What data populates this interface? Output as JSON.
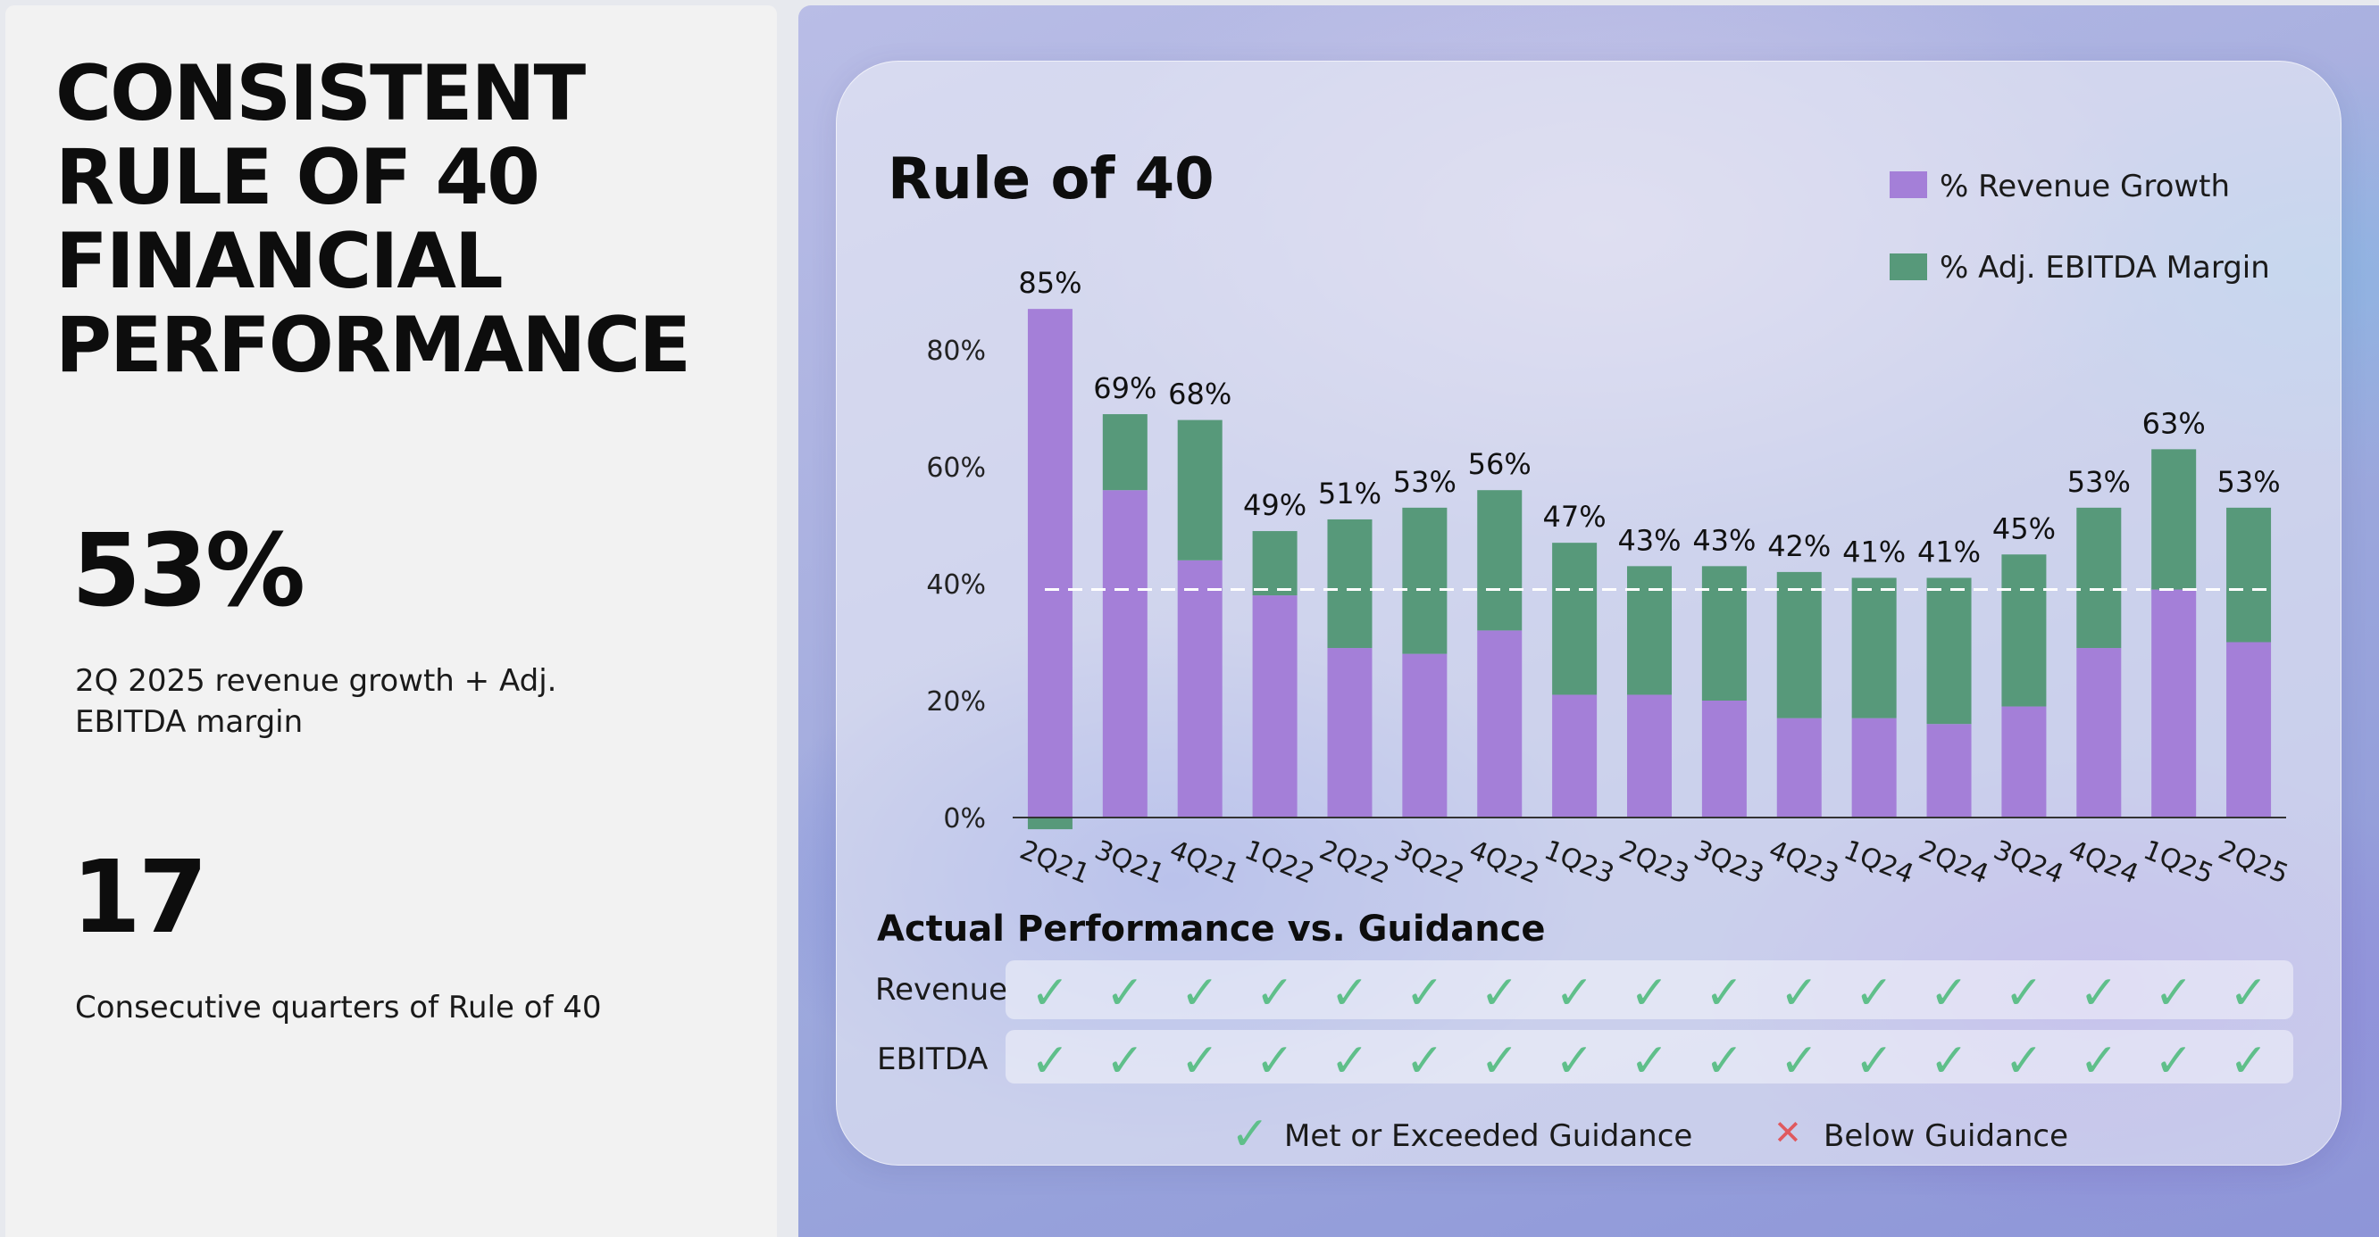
{
  "left_panel": {
    "headline_lines": [
      "CONSISTENT",
      "RULE OF 40",
      "FINANCIAL",
      "PERFORMANCE"
    ],
    "stat1_value": "53%",
    "stat1_desc_lines": [
      "2Q 2025 revenue growth + Adj.",
      "EBITDA margin"
    ],
    "stat2_value": "17",
    "stat2_desc": "Consecutive quarters of Rule of 40"
  },
  "chart_data": {
    "type": "bar",
    "stacked": true,
    "title": "Rule of 40",
    "categories": [
      "2Q21",
      "3Q21",
      "4Q21",
      "1Q22",
      "2Q22",
      "3Q22",
      "4Q22",
      "1Q23",
      "2Q23",
      "3Q23",
      "4Q23",
      "1Q24",
      "2Q24",
      "3Q24",
      "4Q24",
      "1Q25",
      "2Q25"
    ],
    "series": [
      {
        "name": "% Revenue Growth",
        "color": "#a47fd8",
        "values": [
          87,
          56,
          44,
          38,
          29,
          28,
          32,
          21,
          21,
          20,
          17,
          17,
          16,
          19,
          29,
          39,
          30
        ]
      },
      {
        "name": "% Adj. EBITDA Margin",
        "color": "#57997a",
        "values": [
          -2,
          13,
          24,
          11,
          22,
          25,
          24,
          26,
          22,
          23,
          25,
          24,
          25,
          26,
          24,
          24,
          23
        ]
      }
    ],
    "totals": [
      "85%",
      "69%",
      "68%",
      "49%",
      "51%",
      "53%",
      "56%",
      "47%",
      "43%",
      "43%",
      "42%",
      "41%",
      "41%",
      "45%",
      "53%",
      "63%",
      "53%"
    ],
    "y_ticks": [
      "0%",
      "20%",
      "40%",
      "60%",
      "80%"
    ],
    "y_tick_values": [
      0,
      20,
      40,
      60,
      80
    ],
    "ylim": [
      0,
      88
    ],
    "reference_line": 39,
    "legend": {
      "position": "top-right"
    },
    "grid": false
  },
  "guidance": {
    "title": "Actual Performance vs. Guidance",
    "rows": [
      {
        "label": "Revenue",
        "marks": [
          "✓",
          "✓",
          "✓",
          "✓",
          "✓",
          "✓",
          "✓",
          "✓",
          "✓",
          "✓",
          "✓",
          "✓",
          "✓",
          "✓",
          "✓",
          "✓",
          "✓"
        ]
      },
      {
        "label": "EBITDA",
        "marks": [
          "✓",
          "✓",
          "✓",
          "✓",
          "✓",
          "✓",
          "✓",
          "✓",
          "✓",
          "✓",
          "✓",
          "✓",
          "✓",
          "✓",
          "✓",
          "✓",
          "✓"
        ]
      }
    ],
    "legend_met_symbol": "✓",
    "legend_met": "Met or Exceeded Guidance",
    "legend_below_symbol": "✕",
    "legend_below": "Below Guidance",
    "met_color": "#5fbf8a",
    "below_color": "#e0595e"
  }
}
